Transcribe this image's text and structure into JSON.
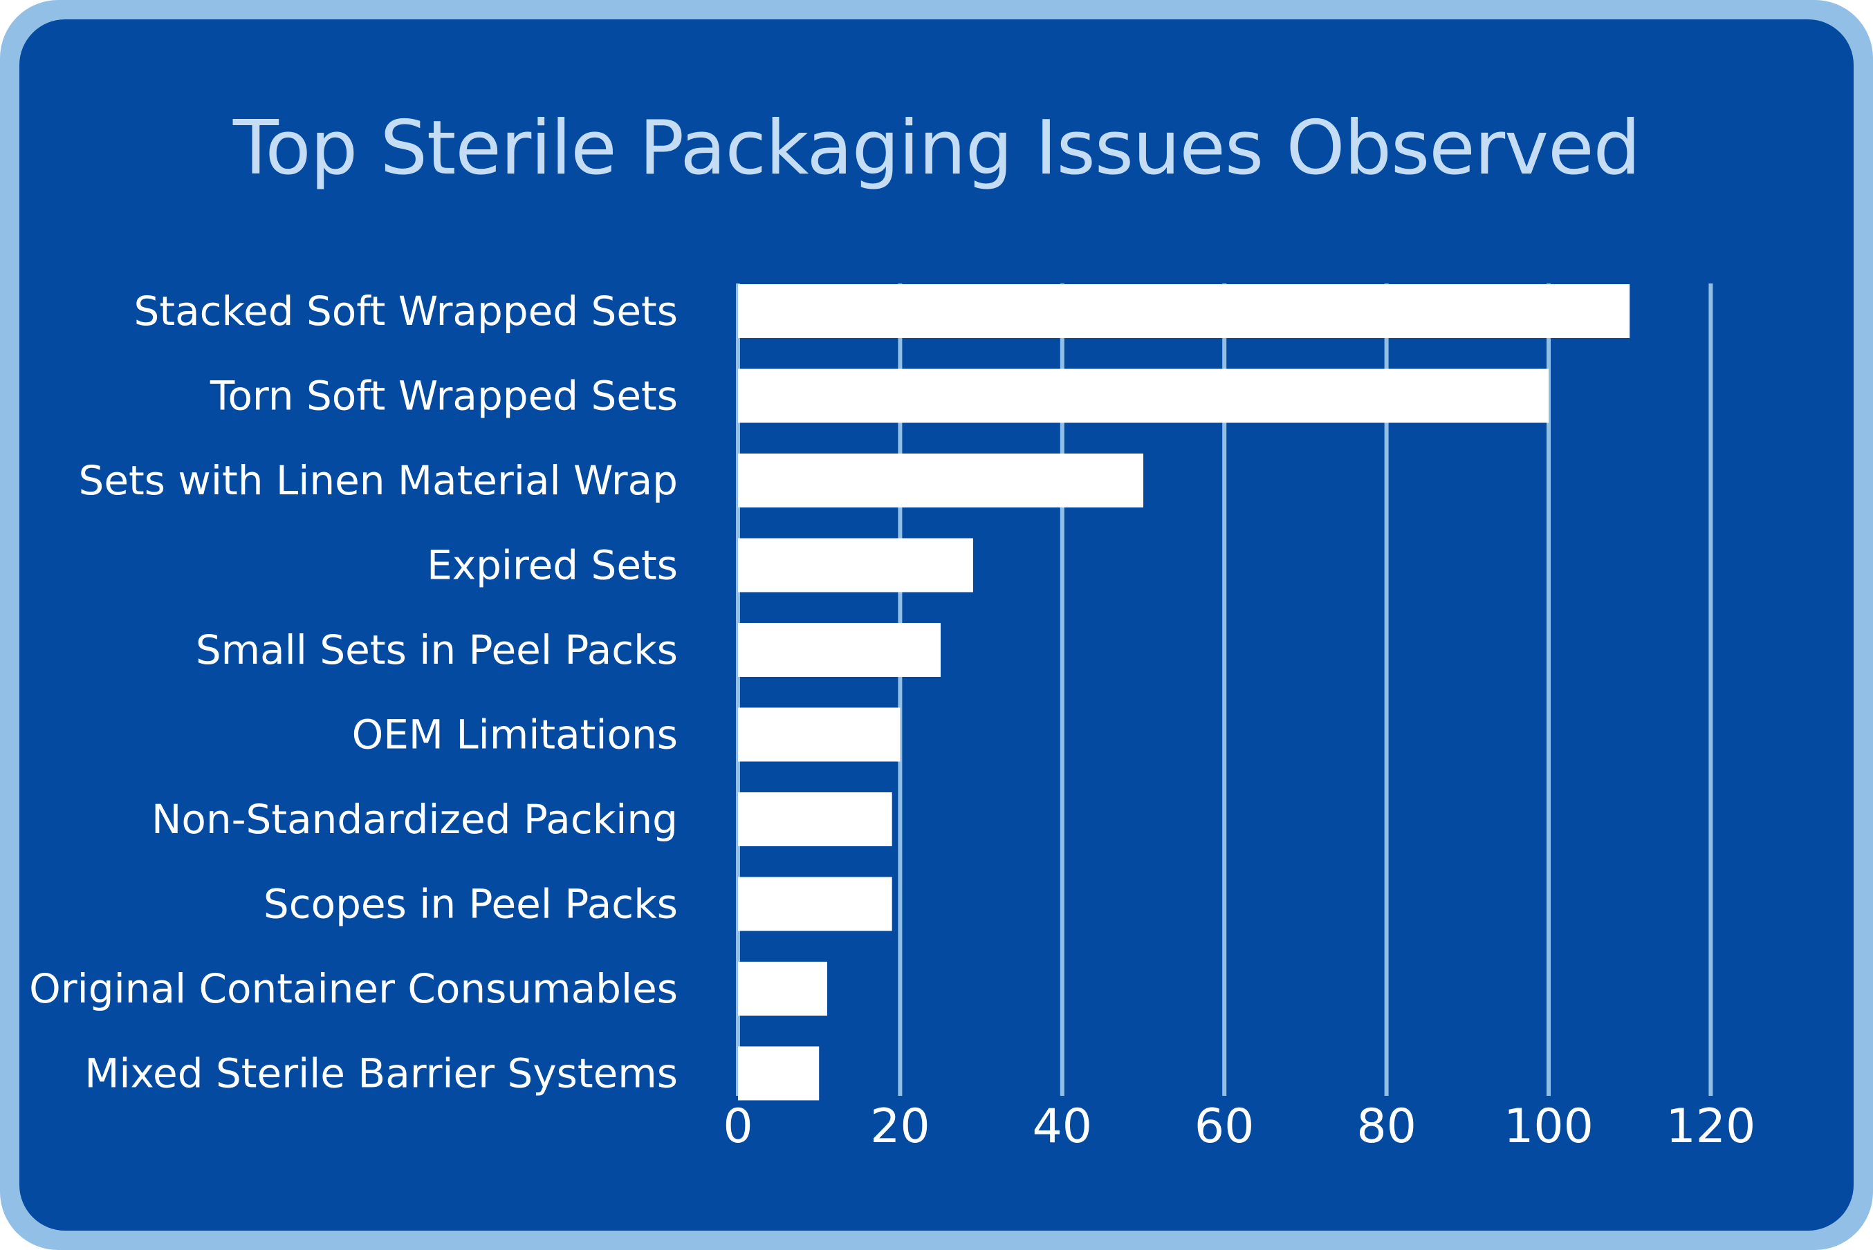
{
  "chart_data": {
    "type": "bar",
    "orientation": "horizontal",
    "title": "Top Sterile Packaging Issues Observed",
    "xlabel": "",
    "ylabel": "",
    "categories": [
      "Stacked Soft Wrapped Sets",
      "Torn Soft Wrapped Sets",
      "Sets with Linen Material Wrap",
      "Expired Sets",
      "Small Sets in Peel Packs",
      "OEM Limitations",
      "Non-Standardized Packing",
      "Scopes in Peel Packs",
      "Original Container Consumables",
      "Mixed Sterile Barrier Systems"
    ],
    "values": [
      110,
      100,
      50,
      29,
      25,
      20,
      19,
      19,
      11,
      10
    ],
    "xlim": [
      0,
      120
    ],
    "xticks": [
      "0",
      "20",
      "40",
      "60",
      "80",
      "100",
      "120"
    ],
    "grid": true,
    "legend": "none",
    "colors": {
      "frame": "#92bfe6",
      "background": "#044aa1",
      "bar": "#ffffff",
      "gridline": "#92bfe6",
      "title": "#c4ddf4",
      "text": "#ffffff"
    }
  }
}
